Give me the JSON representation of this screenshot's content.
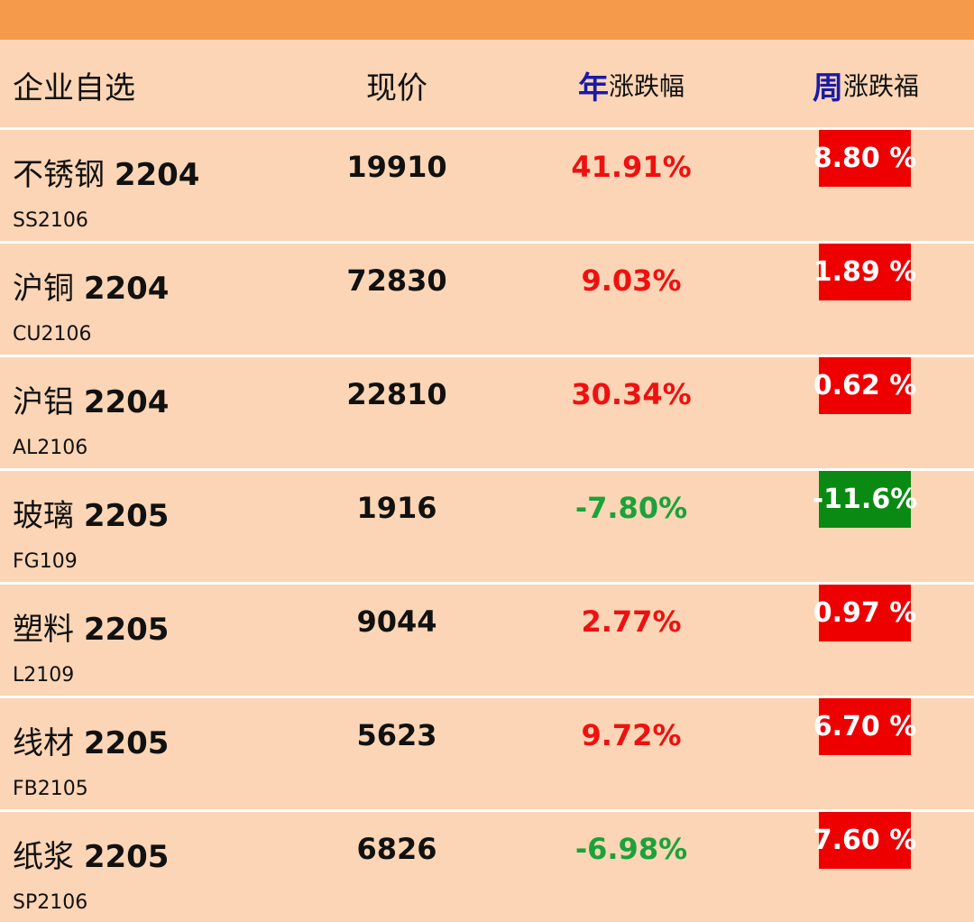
{
  "header": {
    "col_name": "企业自选",
    "col_price": "现价",
    "col_year_accent": "年",
    "col_year_rest": "涨跌幅",
    "col_week_accent": "周",
    "col_week_rest": "涨跌福"
  },
  "colors": {
    "up": "#ee1111",
    "down": "#1aa33a",
    "up_bg": "#ee0000",
    "down_bg": "#0b8a13",
    "accent": "#1a1aa6"
  },
  "rows": [
    {
      "name": "不锈钢",
      "contract": "2204",
      "code": "SS2106",
      "price": "19910",
      "year": "41.91%",
      "week": "8.80 %",
      "dir_year": "up",
      "dir_week": "up"
    },
    {
      "name": "沪铜",
      "contract": "2204",
      "code": "CU2106",
      "price": "72830",
      "year": "9.03%",
      "week": "1.89 %",
      "dir_year": "up",
      "dir_week": "up"
    },
    {
      "name": "沪铝",
      "contract": "2204",
      "code": "AL2106",
      "price": "22810",
      "year": "30.34%",
      "week": "0.62 %",
      "dir_year": "up",
      "dir_week": "up"
    },
    {
      "name": "玻璃",
      "contract": "2205",
      "code": "FG109",
      "price": "1916",
      "year": "-7.80%",
      "week": "-11.6%",
      "dir_year": "down",
      "dir_week": "down"
    },
    {
      "name": "塑料",
      "contract": "2205",
      "code": "L2109",
      "price": "9044",
      "year": "2.77%",
      "week": "0.97 %",
      "dir_year": "up",
      "dir_week": "up"
    },
    {
      "name": "线材",
      "contract": "2205",
      "code": "FB2105",
      "price": "5623",
      "year": "9.72%",
      "week": "6.70 %",
      "dir_year": "up",
      "dir_week": "up"
    },
    {
      "name": "纸浆",
      "contract": "2205",
      "code": "SP2106",
      "price": "6826",
      "year": "-6.98%",
      "week": "7.60 %",
      "dir_year": "down",
      "dir_week": "up"
    }
  ]
}
